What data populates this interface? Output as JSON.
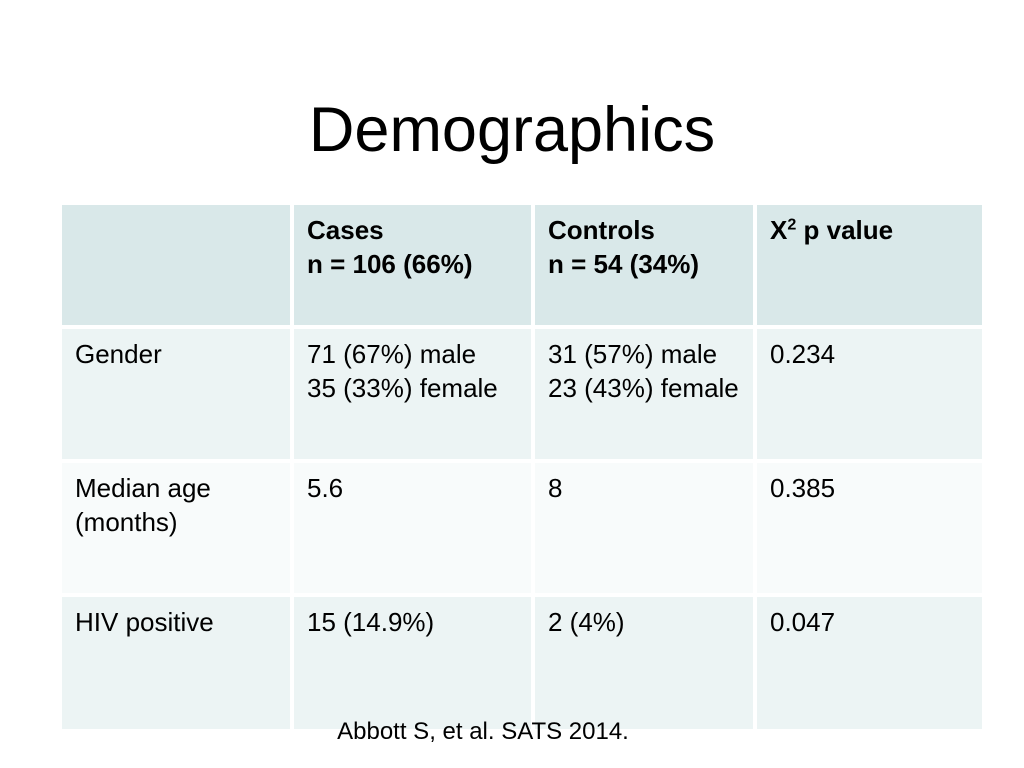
{
  "slide": {
    "title": "Demographics",
    "citation": "Abbott S, et al. SATS 2014."
  },
  "table": {
    "headers": {
      "row_label": "",
      "cases": [
        "Cases",
        "n = 106 (66%)"
      ],
      "controls": [
        "Controls",
        "n = 54 (34%)"
      ],
      "p_value": {
        "base": "X",
        "sup": "2",
        "rest": " p value"
      }
    },
    "rows": [
      {
        "label": [
          "Gender"
        ],
        "cases": [
          "71 (67%) male",
          "35 (33%) female"
        ],
        "controls": [
          "31 (57%) male",
          "23 (43%) female"
        ],
        "p": "0.234"
      },
      {
        "label": [
          "Median age",
          "(months)"
        ],
        "cases": [
          "5.6"
        ],
        "controls": [
          "8"
        ],
        "p": "0.385"
      },
      {
        "label": [
          "HIV positive"
        ],
        "cases": [
          "15 (14.9%)"
        ],
        "controls": [
          "2 (4%)"
        ],
        "p": "0.047"
      }
    ],
    "colors": {
      "header_bg": "#d9e8e9",
      "row_odd_bg": "#ecf4f4",
      "row_even_bg": "#f8fbfb",
      "text": "#000000"
    }
  }
}
